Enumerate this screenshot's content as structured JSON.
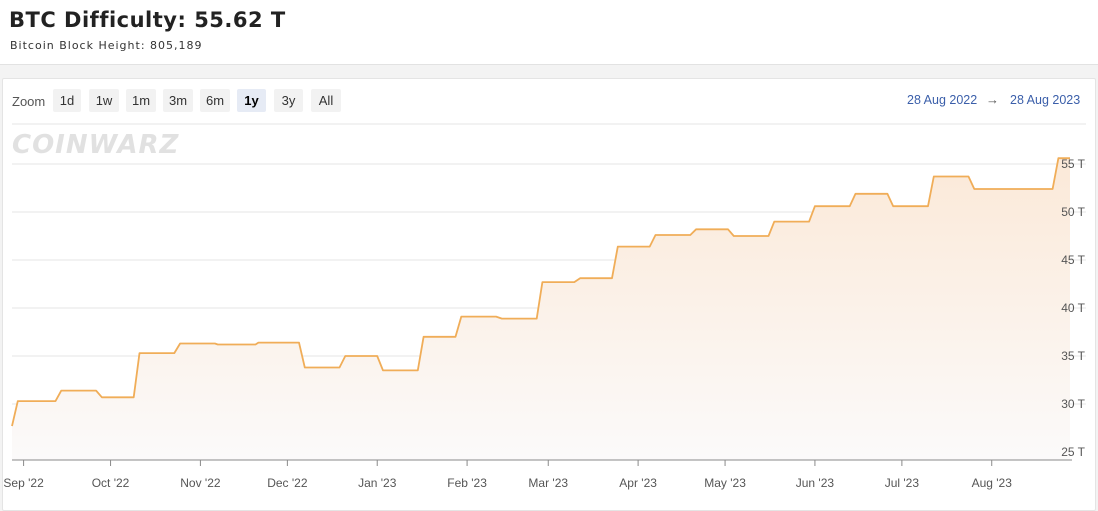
{
  "header": {
    "title": "BTC Difficulty: 55.62 T",
    "subtitle": "Bitcoin Block Height: 805,189"
  },
  "toolbar": {
    "zoom_label": "Zoom",
    "buttons": [
      "1d",
      "1w",
      "1m",
      "3m",
      "6m",
      "1y",
      "3y",
      "All"
    ],
    "active": "1y",
    "range_from": "28 Aug 2022",
    "range_arrow": "→",
    "range_to": "28 Aug 2023"
  },
  "watermark": "COINWARZ",
  "colors": {
    "line": "#f0ad58",
    "fill_top": "#fbe9d8",
    "fill_bottom": "#fbfafa",
    "grid": "#e6e6e6",
    "range_link": "#3b5faa"
  },
  "chart_data": {
    "type": "area",
    "title": "BTC Difficulty: 55.62 T",
    "xlabel": "",
    "ylabel": "",
    "ylim": [
      25,
      55
    ],
    "y_ticks": [
      25,
      30,
      35,
      40,
      45,
      50,
      55
    ],
    "y_tick_labels": [
      "25 T",
      "30 T",
      "35 T",
      "40 T",
      "45 T",
      "50 T",
      "55 T"
    ],
    "x_range": [
      "2022-08-28",
      "2023-08-28"
    ],
    "x_ticks": [
      "2022-09-01",
      "2022-10-01",
      "2022-11-01",
      "2022-12-01",
      "2023-01-01",
      "2023-02-01",
      "2023-03-01",
      "2023-04-01",
      "2023-05-01",
      "2023-06-01",
      "2023-07-01",
      "2023-08-01"
    ],
    "x_tick_labels": [
      "Sep '22",
      "Oct '22",
      "Nov '22",
      "Dec '22",
      "Jan '23",
      "Feb '23",
      "Mar '23",
      "Apr '23",
      "May '23",
      "Jun '23",
      "Jul '23",
      "Aug '23"
    ],
    "series": [
      {
        "unit": "T",
        "points": [
          [
            "2022-08-28",
            27.7
          ],
          [
            "2022-08-30",
            30.3
          ],
          [
            "2022-09-12",
            30.3
          ],
          [
            "2022-09-14",
            31.4
          ],
          [
            "2022-09-26",
            31.4
          ],
          [
            "2022-09-28",
            30.7
          ],
          [
            "2022-10-09",
            30.7
          ],
          [
            "2022-10-11",
            35.3
          ],
          [
            "2022-10-23",
            35.3
          ],
          [
            "2022-10-25",
            36.3
          ],
          [
            "2022-11-06",
            36.3
          ],
          [
            "2022-11-07",
            36.2
          ],
          [
            "2022-11-20",
            36.2
          ],
          [
            "2022-11-21",
            36.4
          ],
          [
            "2022-12-05",
            36.4
          ],
          [
            "2022-12-07",
            33.8
          ],
          [
            "2022-12-19",
            33.8
          ],
          [
            "2022-12-21",
            35.0
          ],
          [
            "2023-01-01",
            35.0
          ],
          [
            "2023-01-03",
            33.5
          ],
          [
            "2023-01-15",
            33.5
          ],
          [
            "2023-01-17",
            37.0
          ],
          [
            "2023-01-28",
            37.0
          ],
          [
            "2023-01-30",
            39.1
          ],
          [
            "2023-02-11",
            39.1
          ],
          [
            "2023-02-13",
            38.9
          ],
          [
            "2023-02-25",
            38.9
          ],
          [
            "2023-02-27",
            42.7
          ],
          [
            "2023-03-10",
            42.7
          ],
          [
            "2023-03-12",
            43.1
          ],
          [
            "2023-03-23",
            43.1
          ],
          [
            "2023-03-25",
            46.4
          ],
          [
            "2023-04-05",
            46.4
          ],
          [
            "2023-04-07",
            47.6
          ],
          [
            "2023-04-19",
            47.6
          ],
          [
            "2023-04-21",
            48.2
          ],
          [
            "2023-05-02",
            48.2
          ],
          [
            "2023-05-04",
            47.5
          ],
          [
            "2023-05-16",
            47.5
          ],
          [
            "2023-05-18",
            49.0
          ],
          [
            "2023-05-30",
            49.0
          ],
          [
            "2023-06-01",
            50.6
          ],
          [
            "2023-06-13",
            50.6
          ],
          [
            "2023-06-15",
            51.9
          ],
          [
            "2023-06-26",
            51.9
          ],
          [
            "2023-06-28",
            50.6
          ],
          [
            "2023-07-10",
            50.6
          ],
          [
            "2023-07-12",
            53.7
          ],
          [
            "2023-07-24",
            53.7
          ],
          [
            "2023-07-26",
            52.4
          ],
          [
            "2023-08-08",
            52.4
          ],
          [
            "2023-08-09",
            52.4
          ],
          [
            "2023-08-22",
            52.4
          ],
          [
            "2023-08-24",
            55.6
          ],
          [
            "2023-08-28",
            55.6
          ]
        ]
      }
    ]
  }
}
